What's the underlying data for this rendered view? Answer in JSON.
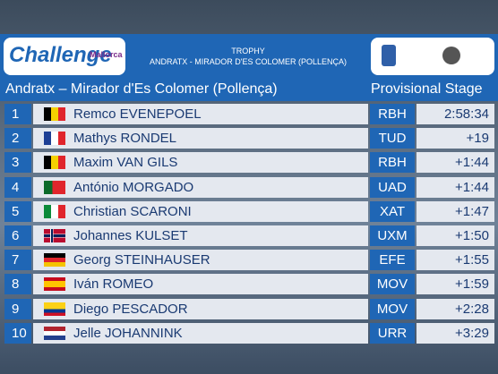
{
  "header": {
    "logo": "Challenge",
    "logo_sub": "Mallorca",
    "kicker": "TROPHY",
    "title": "ANDRATX - MIRADOR D'ES COLOMER (POLLENÇA)"
  },
  "subheader": {
    "stage": "Andratx – Mirador d'Es Colomer (Pollença)",
    "status": "Provisional Stage"
  },
  "table": {
    "rows": [
      [
        "1",
        "Remco EVENEPOEL",
        "RBH",
        "2:58:34"
      ],
      [
        "2",
        "Mathys RONDEL",
        "TUD",
        "+19"
      ],
      [
        "3",
        "Maxim VAN GILS",
        "RBH",
        "+1:44"
      ],
      [
        "4",
        "António MORGADO",
        "UAD",
        "+1:44"
      ],
      [
        "5",
        "Christian SCARONI",
        "XAT",
        "+1:47"
      ],
      [
        "6",
        "Johannes KULSET",
        "UXM",
        "+1:50"
      ],
      [
        "7",
        "Georg STEINHAUSER",
        "EFE",
        "+1:55"
      ],
      [
        "8",
        "Iván ROMEO",
        "MOV",
        "+1:59"
      ],
      [
        "9",
        "Diego PESCADOR",
        "MOV",
        "+2:28"
      ],
      [
        "10",
        "Jelle JOHANNINK",
        "URR",
        "+3:29"
      ]
    ]
  }
}
